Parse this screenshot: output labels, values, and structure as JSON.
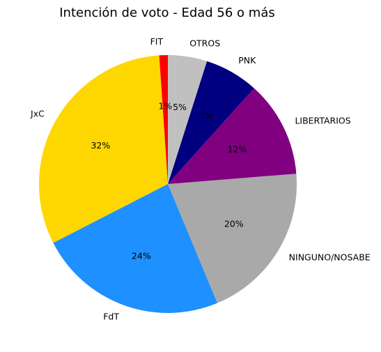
{
  "chart_data": {
    "type": "pie",
    "title": "Intención de voto - Edad 56 o más",
    "start_angle_deg": 90,
    "direction": "counterclockwise",
    "slices": [
      {
        "label": "FIT",
        "value": 1.1,
        "pct_label": "1%",
        "color": "#ff0000"
      },
      {
        "label": "JxC",
        "value": 32.1,
        "pct_label": "32%",
        "color": "#ffd700"
      },
      {
        "label": "FdT",
        "value": 24.2,
        "pct_label": "24%",
        "color": "#1e90ff"
      },
      {
        "label": "NINGUNO/NOSABE",
        "value": 20.4,
        "pct_label": "20%",
        "color": "#a9a9a9"
      },
      {
        "label": "LIBERTARIOS",
        "value": 12.3,
        "pct_label": "12%",
        "color": "#800080"
      },
      {
        "label": "PNK",
        "value": 6.9,
        "pct_label": "7%",
        "color": "#000080"
      },
      {
        "label": "OTROS",
        "value": 5.0,
        "pct_label": "5%",
        "color": "#c0c0c0"
      }
    ]
  }
}
